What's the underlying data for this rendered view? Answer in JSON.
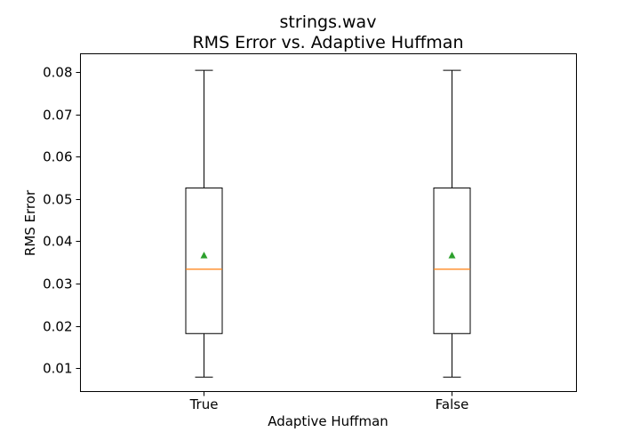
{
  "chart_data": {
    "type": "box",
    "title": "strings.wav",
    "subtitle": "RMS Error vs. Adaptive Huffman",
    "xlabel": "Adaptive Huffman",
    "ylabel": "RMS Error",
    "ylim": [
      0.0045,
      0.0843
    ],
    "yticks": [
      "0.01",
      "0.02",
      "0.03",
      "0.04",
      "0.05",
      "0.06",
      "0.07",
      "0.08"
    ],
    "ytick_values": [
      0.01,
      0.02,
      0.03,
      0.04,
      0.05,
      0.06,
      0.07,
      0.08
    ],
    "grid": false,
    "colors": {
      "box": "#000000",
      "median": "#ff7f0e",
      "mean": "#2ca02c"
    },
    "categories": [
      "True",
      "False"
    ],
    "series": [
      {
        "category": "True",
        "whisker_low": 0.0079,
        "q1": 0.0182,
        "median": 0.0334,
        "q3": 0.0526,
        "whisker_high": 0.0804,
        "mean": 0.0367
      },
      {
        "category": "False",
        "whisker_low": 0.0079,
        "q1": 0.0182,
        "median": 0.0334,
        "q3": 0.0526,
        "whisker_high": 0.0804,
        "mean": 0.0367
      }
    ]
  }
}
